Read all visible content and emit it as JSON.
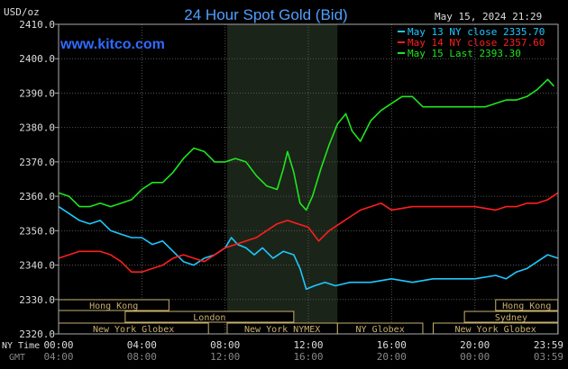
{
  "chart_data": {
    "type": "line",
    "title": "24 Hour Spot Gold (Bid)",
    "unit_label": "USD/oz",
    "source": "www.kitco.com",
    "timestamp": "May 15, 2024 21:29",
    "ylim": [
      2320,
      2410
    ],
    "y_ticks": [
      "2410.0",
      "2400.0",
      "2390.0",
      "2380.0",
      "2370.0",
      "2360.0",
      "2350.0",
      "2340.0",
      "2330.0",
      "2320.0"
    ],
    "y_tick_values": [
      2410,
      2400,
      2390,
      2380,
      2370,
      2360,
      2350,
      2340,
      2330,
      2320
    ],
    "xlim": [
      0,
      24
    ],
    "x_tick_values": [
      0,
      4,
      8,
      12,
      16,
      20,
      24
    ],
    "x_ticks_ny": [
      "00:00",
      "04:00",
      "08:00",
      "12:00",
      "16:00",
      "20:00",
      "23:59"
    ],
    "x_ticks_gmt": [
      "04:00",
      "08:00",
      "12:00",
      "16:00",
      "20:00",
      "00:00",
      "03:59"
    ],
    "x_row_label_ny": "NY Time",
    "x_row_label_gmt": "GMT",
    "shaded_region": [
      8.1,
      13.4
    ],
    "legend": [
      {
        "label": "May 13 NY close 2335.70",
        "color": "#1EC8FF"
      },
      {
        "label": "May 14 NY close 2357.60",
        "color": "#FF1E1E"
      },
      {
        "label": "May 15 Last 2393.30",
        "color": "#1EE61E"
      }
    ],
    "series": [
      {
        "name": "May 13",
        "color": "#1EC8FF",
        "points": [
          [
            0,
            2357
          ],
          [
            0.5,
            2355
          ],
          [
            1,
            2353
          ],
          [
            1.5,
            2352
          ],
          [
            2,
            2353
          ],
          [
            2.5,
            2350
          ],
          [
            3,
            2349
          ],
          [
            3.5,
            2348
          ],
          [
            4,
            2348
          ],
          [
            4.5,
            2346
          ],
          [
            5,
            2347
          ],
          [
            5.5,
            2344
          ],
          [
            6,
            2341
          ],
          [
            6.5,
            2340
          ],
          [
            7,
            2342
          ],
          [
            7.5,
            2343
          ],
          [
            8,
            2345
          ],
          [
            8.3,
            2348
          ],
          [
            8.6,
            2346
          ],
          [
            9,
            2345
          ],
          [
            9.4,
            2343
          ],
          [
            9.8,
            2345
          ],
          [
            10.3,
            2342
          ],
          [
            10.8,
            2344
          ],
          [
            11.3,
            2343
          ],
          [
            11.6,
            2339
          ],
          [
            11.9,
            2333
          ],
          [
            12.3,
            2334
          ],
          [
            12.8,
            2335
          ],
          [
            13.3,
            2334
          ],
          [
            14,
            2335
          ],
          [
            15,
            2335
          ],
          [
            16,
            2336
          ],
          [
            17,
            2335
          ],
          [
            18,
            2336
          ],
          [
            19,
            2336
          ],
          [
            20,
            2336
          ],
          [
            21,
            2337
          ],
          [
            21.5,
            2336
          ],
          [
            22,
            2338
          ],
          [
            22.5,
            2339
          ],
          [
            23,
            2341
          ],
          [
            23.5,
            2343
          ],
          [
            23.99,
            2342
          ]
        ]
      },
      {
        "name": "May 14",
        "color": "#FF1E1E",
        "points": [
          [
            0,
            2342
          ],
          [
            0.5,
            2343
          ],
          [
            1,
            2344
          ],
          [
            1.5,
            2344
          ],
          [
            2,
            2344
          ],
          [
            2.5,
            2343
          ],
          [
            3,
            2341
          ],
          [
            3.5,
            2338
          ],
          [
            4,
            2338
          ],
          [
            4.5,
            2339
          ],
          [
            5,
            2340
          ],
          [
            5.5,
            2342
          ],
          [
            6,
            2343
          ],
          [
            6.5,
            2342
          ],
          [
            7,
            2341
          ],
          [
            7.5,
            2343
          ],
          [
            8,
            2345
          ],
          [
            8.5,
            2346
          ],
          [
            9,
            2347
          ],
          [
            9.5,
            2348
          ],
          [
            10,
            2350
          ],
          [
            10.5,
            2352
          ],
          [
            11,
            2353
          ],
          [
            11.5,
            2352
          ],
          [
            12,
            2351
          ],
          [
            12.5,
            2347
          ],
          [
            13,
            2350
          ],
          [
            13.5,
            2352
          ],
          [
            14,
            2354
          ],
          [
            14.5,
            2356
          ],
          [
            15,
            2357
          ],
          [
            15.5,
            2358
          ],
          [
            16,
            2356
          ],
          [
            17,
            2357
          ],
          [
            18,
            2357
          ],
          [
            19,
            2357
          ],
          [
            20,
            2357
          ],
          [
            21,
            2356
          ],
          [
            21.5,
            2357
          ],
          [
            22,
            2357
          ],
          [
            22.5,
            2358
          ],
          [
            23,
            2358
          ],
          [
            23.5,
            2359
          ],
          [
            23.99,
            2361
          ]
        ]
      },
      {
        "name": "May 15",
        "color": "#1EE61E",
        "points": [
          [
            0,
            2361
          ],
          [
            0.5,
            2360
          ],
          [
            1,
            2357
          ],
          [
            1.5,
            2357
          ],
          [
            2,
            2358
          ],
          [
            2.5,
            2357
          ],
          [
            3,
            2358
          ],
          [
            3.5,
            2359
          ],
          [
            4,
            2362
          ],
          [
            4.5,
            2364
          ],
          [
            5,
            2364
          ],
          [
            5.5,
            2367
          ],
          [
            6,
            2371
          ],
          [
            6.5,
            2374
          ],
          [
            7,
            2373
          ],
          [
            7.5,
            2370
          ],
          [
            8,
            2370
          ],
          [
            8.5,
            2371
          ],
          [
            9,
            2370
          ],
          [
            9.5,
            2366
          ],
          [
            10,
            2363
          ],
          [
            10.5,
            2362
          ],
          [
            10.8,
            2368
          ],
          [
            11,
            2373
          ],
          [
            11.3,
            2367
          ],
          [
            11.6,
            2358
          ],
          [
            11.9,
            2356
          ],
          [
            12.2,
            2360
          ],
          [
            12.6,
            2368
          ],
          [
            13,
            2375
          ],
          [
            13.4,
            2381
          ],
          [
            13.8,
            2384
          ],
          [
            14.1,
            2379
          ],
          [
            14.5,
            2376
          ],
          [
            15,
            2382
          ],
          [
            15.5,
            2385
          ],
          [
            16,
            2387
          ],
          [
            16.5,
            2389
          ],
          [
            17,
            2389
          ],
          [
            17.5,
            2386
          ],
          [
            18,
            2386
          ],
          [
            18.5,
            2386
          ],
          [
            19,
            2386
          ],
          [
            19.5,
            2386
          ],
          [
            20,
            2386
          ],
          [
            20.5,
            2386
          ],
          [
            21,
            2387
          ],
          [
            21.5,
            2388
          ],
          [
            22,
            2388
          ],
          [
            22.5,
            2389
          ],
          [
            23,
            2391
          ],
          [
            23.5,
            2394
          ],
          [
            23.8,
            2392
          ]
        ]
      }
    ],
    "sessions": [
      {
        "label": "Hong Kong",
        "start": 0,
        "end": 5.3,
        "row": 0
      },
      {
        "label": "London",
        "start": 3.2,
        "end": 11.3,
        "row": 1
      },
      {
        "label": "New York Globex",
        "start": 0,
        "end": 7.2,
        "row": 2
      },
      {
        "label": "New York NYMEX",
        "start": 8.1,
        "end": 13.4,
        "row": 2
      },
      {
        "label": "NY Globex",
        "start": 13.4,
        "end": 17.5,
        "row": 2
      },
      {
        "label": "Hong Kong",
        "start": 21,
        "end": 23.99,
        "row": 0
      },
      {
        "label": "Sydney",
        "start": 19.5,
        "end": 23.99,
        "row": 1
      },
      {
        "label": "New York Globex",
        "start": 18,
        "end": 23.99,
        "row": 2
      }
    ]
  }
}
